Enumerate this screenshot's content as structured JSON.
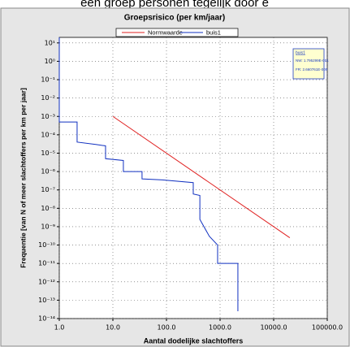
{
  "header_text": "een groep personen tegelijk door e",
  "chart_data": {
    "type": "line",
    "title": "Groepsrisico (per km/jaar)",
    "x_label": "Aantal dodelijke slachtoffers",
    "y_label": "Frequentie [van N of meer slachtoffers per km per jaar]",
    "xscale": "log",
    "yscale": "log",
    "grid": true,
    "xlim": [
      1,
      100000
    ],
    "ylim": [
      1e-14,
      20
    ],
    "xticks": [
      {
        "value": 1,
        "label": "1.0"
      },
      {
        "value": 10,
        "label": "10.0"
      },
      {
        "value": 100,
        "label": "100.0"
      },
      {
        "value": 1000,
        "label": "1000.0"
      },
      {
        "value": 10000,
        "label": "10000.0"
      },
      {
        "value": 100000,
        "label": "100000.0"
      }
    ],
    "yticks": [
      {
        "value": 10,
        "label": "10¹"
      },
      {
        "value": 1,
        "label": "10⁰"
      },
      {
        "value": 0.1,
        "label": "10⁻¹"
      },
      {
        "value": 0.01,
        "label": "10⁻²"
      },
      {
        "value": 0.001,
        "label": "10⁻³"
      },
      {
        "value": 0.0001,
        "label": "10⁻⁴"
      },
      {
        "value": 1e-05,
        "label": "10⁻⁵"
      },
      {
        "value": 1e-06,
        "label": "10⁻⁶"
      },
      {
        "value": 1e-07,
        "label": "10⁻⁷"
      },
      {
        "value": 1e-08,
        "label": "10⁻⁸"
      },
      {
        "value": 1e-09,
        "label": "10⁻⁹"
      },
      {
        "value": 1e-10,
        "label": "10⁻¹⁰"
      },
      {
        "value": 1e-11,
        "label": "10⁻¹¹"
      },
      {
        "value": 1e-12,
        "label": "10⁻¹²"
      },
      {
        "value": 1e-13,
        "label": "10⁻¹³"
      },
      {
        "value": 1e-14,
        "label": "10⁻¹⁴"
      }
    ],
    "series": [
      {
        "name": "Normwaarde",
        "color": "#e02020",
        "x": [
          10,
          20000
        ],
        "values": [
          0.001,
          2.5e-10
        ]
      },
      {
        "name": "buis1",
        "color": "#1030c0",
        "x": [
          1,
          1,
          2.15,
          2.15,
          4.8,
          7.3,
          7.3,
          15.7,
          15.7,
          35,
          35,
          84,
          316,
          316,
          420,
          420,
          630,
          900,
          900,
          2150,
          2150
        ],
        "values": [
          20,
          0.0005,
          0.0005,
          4e-05,
          3e-05,
          2.5e-05,
          5e-06,
          4e-06,
          1e-06,
          1e-06,
          4e-07,
          3.5e-07,
          2.5e-07,
          6e-08,
          5e-08,
          2.5e-09,
          3e-10,
          1e-10,
          1e-11,
          1e-11,
          2.5e-14
        ]
      }
    ],
    "info_box": {
      "title": "buis1",
      "lines": [
        "NW: 1.795299E-001",
        "FR: 2.660761E-009"
      ]
    }
  }
}
